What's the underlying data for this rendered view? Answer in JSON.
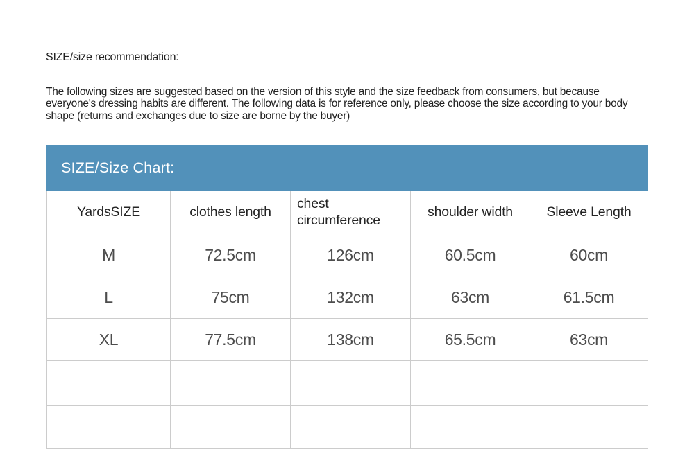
{
  "page": {
    "title": "SIZE/size recommendation:",
    "description": "The following sizes are suggested based on the version of this style and the size feedback from consumers, but because everyone's dressing habits are different. The following data is for reference only, please choose the size according to your body shape (returns and exchanges due to size are borne by the buyer)"
  },
  "size_chart": {
    "banner_label": "SIZE/Size Chart:",
    "banner_color": "#5291ba",
    "border_color": "#cccccc",
    "columns": [
      "YardsSIZE",
      "clothes length",
      "chest circumference",
      "shoulder width",
      "Sleeve Length"
    ],
    "rows": [
      [
        "M",
        "72.5cm",
        "126cm",
        "60.5cm",
        "60cm"
      ],
      [
        "L",
        "75cm",
        "132cm",
        "63cm",
        "61.5cm"
      ],
      [
        "XL",
        "77.5cm",
        "138cm",
        "65.5cm",
        "63cm"
      ]
    ],
    "empty_row_count": 2
  }
}
